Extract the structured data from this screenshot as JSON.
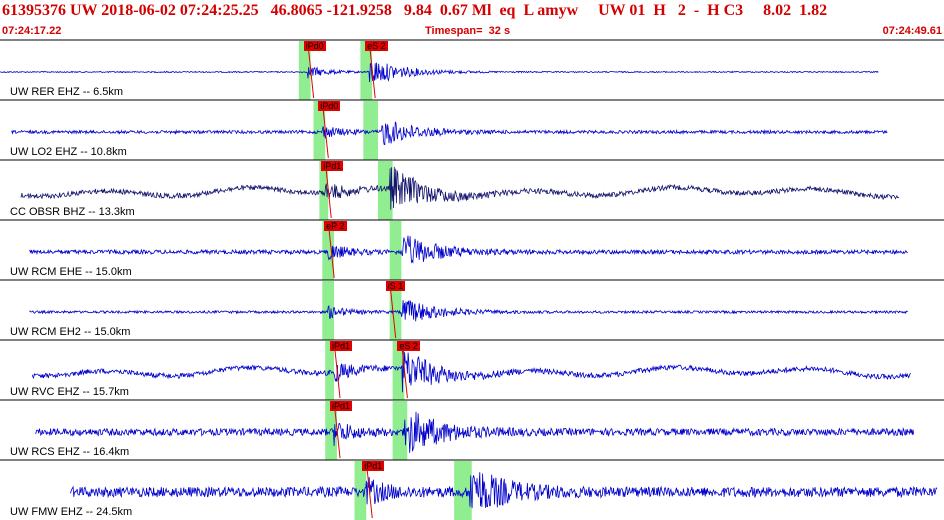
{
  "header": {
    "title": "61395376 UW 2018-06-02 07:24:25.25   46.8065 -121.9258   9.84  0.67 Ml  eq  L amyw     UW 01  H   2  -  H C3     8.02  1.82",
    "start_time": "07:24:17.22",
    "timespan": "Timespan=  32 s",
    "end_time": "07:24:49.61"
  },
  "colors": {
    "header_red": "#d40000",
    "trace_blue": "#0000cc",
    "trace_dark": "#14146e",
    "pick_red": "#e00000",
    "window_green": "#90ee90",
    "separator": "#000000"
  },
  "traces": [
    {
      "label": "UW RER EHZ -- 6.5km",
      "amp_noise": 0.6,
      "amp_event": 14,
      "p_t": 10.5,
      "s_t": 12.6,
      "trace_start": 0.0,
      "trace_end": 30.0,
      "color": "#0000cc",
      "wavy": false,
      "picks": [
        {
          "text": "iPd0",
          "t": 10.5
        },
        {
          "text": "eS 2",
          "t": 12.6
        }
      ],
      "windows": [
        {
          "t0": 10.2,
          "t1": 10.6
        },
        {
          "t0": 12.3,
          "t1": 12.7
        }
      ]
    },
    {
      "label": "UW LO2 EHZ -- 10.8km",
      "amp_noise": 1.5,
      "amp_event": 14,
      "p_t": 11.0,
      "s_t": 13.0,
      "trace_start": 0.4,
      "trace_end": 30.3,
      "color": "#0000cc",
      "wavy": false,
      "picks": [
        {
          "text": "iPd0",
          "t": 11.0
        }
      ],
      "windows": [
        {
          "t0": 10.7,
          "t1": 11.1
        },
        {
          "t0": 12.4,
          "t1": 12.9
        }
      ]
    },
    {
      "label": "CC OBSR BHZ -- 13.3km",
      "amp_noise": 2.5,
      "amp_event": 22,
      "p_t": 11.1,
      "s_t": 13.3,
      "trace_start": 0.7,
      "trace_end": 30.7,
      "color": "#14146e",
      "wavy": true,
      "picks": [
        {
          "text": "iPd1",
          "t": 11.1
        }
      ],
      "windows": [
        {
          "t0": 10.9,
          "t1": 11.2
        },
        {
          "t0": 12.9,
          "t1": 13.4
        }
      ]
    },
    {
      "label": "UW RCM EHE -- 15.0km",
      "amp_noise": 2.0,
      "amp_event": 18,
      "p_t": 11.2,
      "s_t": 13.7,
      "trace_start": 1.0,
      "trace_end": 31.0,
      "color": "#0000cc",
      "wavy": false,
      "picks": [
        {
          "text": "eP 2",
          "t": 11.2
        }
      ],
      "windows": [
        {
          "t0": 11.0,
          "t1": 11.4
        },
        {
          "t0": 13.3,
          "t1": 13.7
        }
      ]
    },
    {
      "label": "UW RCM EH2 -- 15.0km",
      "amp_noise": 1.2,
      "amp_event": 14,
      "p_t": 11.2,
      "s_t": 13.7,
      "trace_start": 1.0,
      "trace_end": 31.0,
      "color": "#0000cc",
      "wavy": false,
      "picks": [
        {
          "text": "iS 1",
          "t": 13.3
        }
      ],
      "windows": [
        {
          "t0": 11.0,
          "t1": 11.4
        },
        {
          "t0": 13.3,
          "t1": 13.7
        }
      ]
    },
    {
      "label": "UW RVC EHZ -- 15.7km",
      "amp_noise": 2.5,
      "amp_event": 22,
      "p_t": 11.4,
      "s_t": 13.7,
      "trace_start": 1.1,
      "trace_end": 31.1,
      "color": "#0000cc",
      "wavy": true,
      "picks": [
        {
          "text": "iPd1",
          "t": 11.4
        },
        {
          "text": "eS 2",
          "t": 13.7
        }
      ],
      "windows": [
        {
          "t0": 11.1,
          "t1": 11.4
        },
        {
          "t0": 13.4,
          "t1": 13.8
        }
      ]
    },
    {
      "label": "UW RCS EHZ -- 16.4km",
      "amp_noise": 3.5,
      "amp_event": 24,
      "p_t": 11.4,
      "s_t": 13.8,
      "trace_start": 1.2,
      "trace_end": 31.2,
      "color": "#0000cc",
      "wavy": false,
      "picks": [
        {
          "text": "iPd1",
          "t": 11.4
        }
      ],
      "windows": [
        {
          "t0": 11.1,
          "t1": 11.5
        },
        {
          "t0": 13.4,
          "t1": 13.9
        }
      ]
    },
    {
      "label": "UW FMW EHZ -- 24.5km",
      "amp_noise": 5.0,
      "amp_event": 26,
      "p_t": 12.5,
      "s_t": 16.0,
      "trace_start": 2.4,
      "trace_end": 32.0,
      "color": "#0000cc",
      "wavy": false,
      "picks": [
        {
          "text": "iPd1",
          "t": 12.5
        }
      ],
      "windows": [
        {
          "t0": 12.1,
          "t1": 12.5
        },
        {
          "t0": 15.5,
          "t1": 16.1
        }
      ]
    }
  ]
}
